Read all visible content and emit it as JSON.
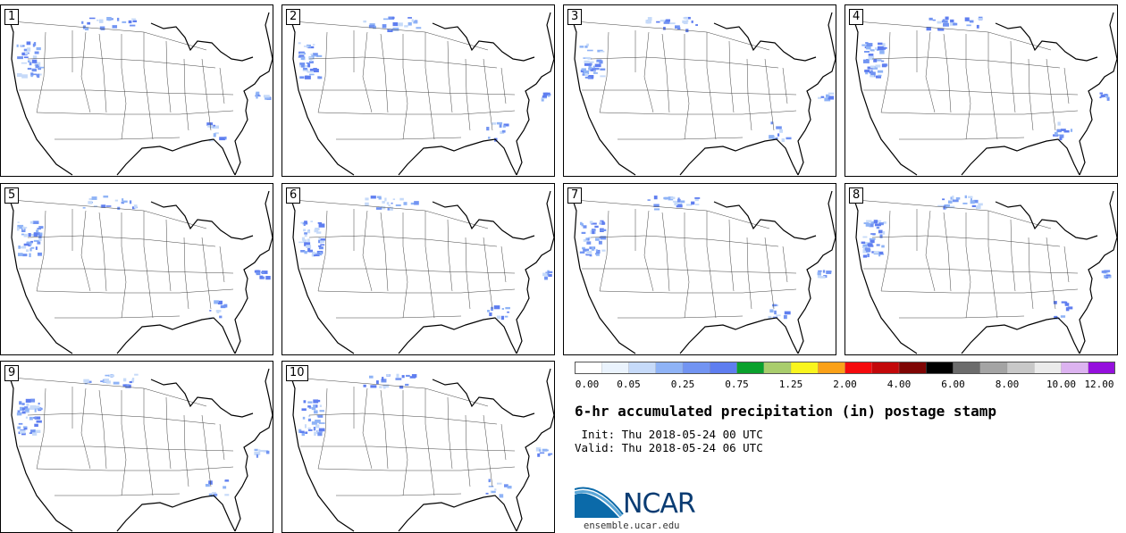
{
  "panels": [
    {
      "label": "1"
    },
    {
      "label": "2"
    },
    {
      "label": "3"
    },
    {
      "label": "4"
    },
    {
      "label": "5"
    },
    {
      "label": "6"
    },
    {
      "label": "7"
    },
    {
      "label": "8"
    },
    {
      "label": "9"
    },
    {
      "label": "10"
    }
  ],
  "colorbar": {
    "colors": [
      "#ffffff",
      "#eaf3fd",
      "#c6daf9",
      "#8fb3f6",
      "#7294f2",
      "#5f7ef0",
      "#0aa12d",
      "#a9cd6d",
      "#f9f51e",
      "#fba118",
      "#f50a0d",
      "#c3080a",
      "#7f0504",
      "#000000",
      "#6c6c6c",
      "#a4a4a4",
      "#c8c8c8",
      "#ebebeb",
      "#dcb3f0",
      "#9510dd"
    ],
    "labels": [
      "0.00",
      "0.05",
      "0.25",
      "0.75",
      "1.25",
      "2.00",
      "4.00",
      "6.00",
      "8.00",
      "10.00",
      "12.00"
    ]
  },
  "title": "6-hr accumulated precipitation (in) postage stamp",
  "init": "Init: Thu 2018-05-24 00 UTC",
  "valid": "Valid: Thu 2018-05-24 06 UTC",
  "logo": {
    "text": "NCAR",
    "url_text": "ensemble.ucar.edu",
    "icon": "ncar-logo-icon"
  }
}
